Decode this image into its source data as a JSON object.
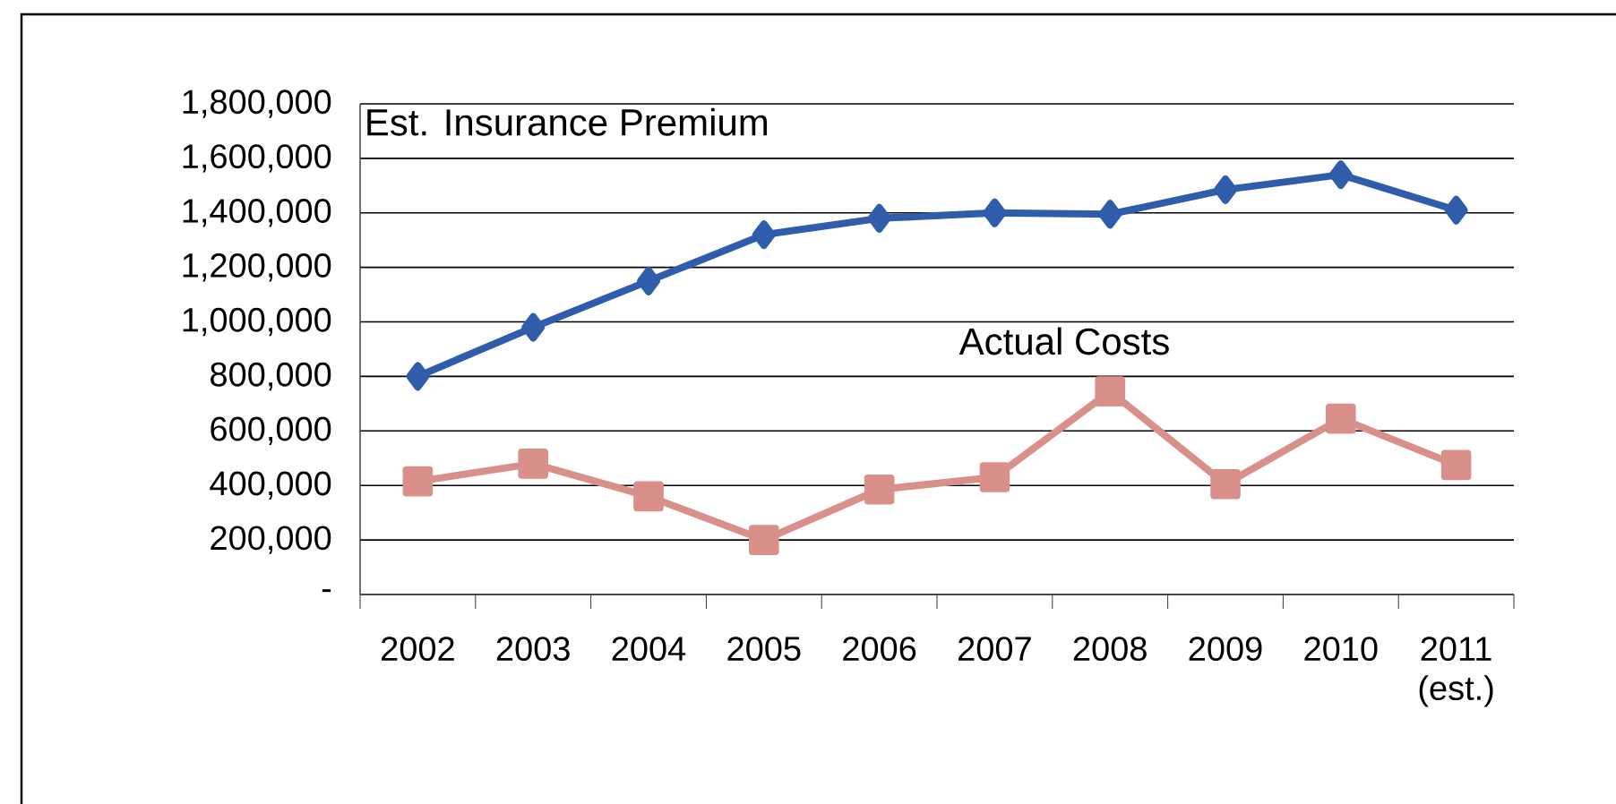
{
  "chart_data": {
    "type": "line",
    "categories": [
      "2002",
      "2003",
      "2004",
      "2005",
      "2006",
      "2007",
      "2008",
      "2009",
      "2010",
      "2011 (est.)"
    ],
    "series": [
      {
        "name": "Est. Insurance Premium",
        "color": "#2f5dab",
        "marker": "diamond",
        "values": [
          800000,
          980000,
          1150000,
          1320000,
          1380000,
          1400000,
          1395000,
          1485000,
          1540000,
          1410000
        ]
      },
      {
        "name": "Actual Costs",
        "color": "#d9908a",
        "marker": "square",
        "values": [
          415000,
          480000,
          360000,
          200000,
          385000,
          430000,
          745000,
          405000,
          645000,
          475000
        ]
      }
    ],
    "ylim": [
      0,
      1800000
    ],
    "yticks": [
      {
        "value": 0,
        "label": "-"
      },
      {
        "value": 200000,
        "label": "200,000"
      },
      {
        "value": 400000,
        "label": "400,000"
      },
      {
        "value": 600000,
        "label": "600,000"
      },
      {
        "value": 800000,
        "label": "800,000"
      },
      {
        "value": 1000000,
        "label": "1,000,000"
      },
      {
        "value": 1200000,
        "label": "1,200,000"
      },
      {
        "value": 1400000,
        "label": "1,400,000"
      },
      {
        "value": 1600000,
        "label": "1,600,000"
      },
      {
        "value": 1800000,
        "label": "1,800,000"
      }
    ],
    "grid": "y",
    "legend": false,
    "line_style": "solid"
  }
}
